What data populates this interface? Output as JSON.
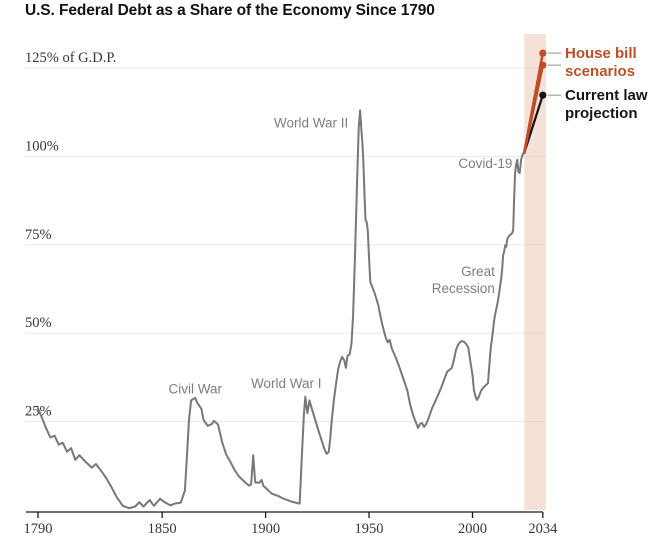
{
  "chart_data": {
    "type": "line",
    "title": "U.S. Federal Debt as a Share of the Economy Since 1790",
    "xlabel": "",
    "ylabel": "% of G.D.P.",
    "x_range": [
      1790,
      2035.5
    ],
    "y_range": [
      0,
      125
    ],
    "grid": true,
    "x_ticks": [
      {
        "value": 1790,
        "label": "1790"
      },
      {
        "value": 1850,
        "label": "1850"
      },
      {
        "value": 1900,
        "label": "1900"
      },
      {
        "value": 1950,
        "label": "1950"
      },
      {
        "value": 2000,
        "label": "2000"
      },
      {
        "value": 2034,
        "label": "2034"
      }
    ],
    "y_ticks": [
      {
        "value": 25,
        "label": "25%"
      },
      {
        "value": 50,
        "label": "50%"
      },
      {
        "value": 75,
        "label": "75%"
      },
      {
        "value": 100,
        "label": "100%"
      },
      {
        "value": 125,
        "label": "125% of G.D.P."
      }
    ],
    "projection_band": {
      "x_start": 2025,
      "x_end": 2035.5,
      "color": "rgba(232,175,152,0.38)"
    },
    "series": [
      {
        "name": "historical-debt",
        "color": "#787878",
        "width": 2,
        "end_dot": false,
        "points": [
          [
            1790,
            28.8
          ],
          [
            1792,
            26
          ],
          [
            1794,
            23
          ],
          [
            1796,
            20.5
          ],
          [
            1798,
            21
          ],
          [
            1800,
            18.5
          ],
          [
            1802,
            19
          ],
          [
            1804,
            16.5
          ],
          [
            1806,
            17.5
          ],
          [
            1808,
            14.2
          ],
          [
            1810,
            15.5
          ],
          [
            1813,
            13.6
          ],
          [
            1816,
            12
          ],
          [
            1818,
            13
          ],
          [
            1821,
            10.7
          ],
          [
            1823,
            9
          ],
          [
            1825,
            7
          ],
          [
            1828,
            3.7
          ],
          [
            1831,
            1.2
          ],
          [
            1834,
            0.5
          ],
          [
            1837,
            1
          ],
          [
            1839,
            2.2
          ],
          [
            1841,
            1
          ],
          [
            1844,
            2.8
          ],
          [
            1846,
            1.2
          ],
          [
            1849,
            3.2
          ],
          [
            1851,
            2.3
          ],
          [
            1854,
            1.3
          ],
          [
            1856,
            1.8
          ],
          [
            1859,
            2.1
          ],
          [
            1861,
            5.5
          ],
          [
            1862,
            15.5
          ],
          [
            1863,
            25.5
          ],
          [
            1864,
            31
          ],
          [
            1866,
            31.7
          ],
          [
            1867,
            30.3
          ],
          [
            1869,
            28.6
          ],
          [
            1870,
            25.5
          ],
          [
            1872,
            23.8
          ],
          [
            1874,
            24.3
          ],
          [
            1875,
            25.2
          ],
          [
            1877,
            24.2
          ],
          [
            1879,
            19.2
          ],
          [
            1881,
            15.6
          ],
          [
            1883,
            13.6
          ],
          [
            1885,
            11.3
          ],
          [
            1887,
            9.6
          ],
          [
            1890,
            7.9
          ],
          [
            1892,
            6.9
          ],
          [
            1893,
            7.2
          ],
          [
            1894,
            15.5
          ],
          [
            1895,
            7.8
          ],
          [
            1897,
            7.7
          ],
          [
            1898,
            8.5
          ],
          [
            1899,
            6.8
          ],
          [
            1901,
            5.7
          ],
          [
            1903,
            4.6
          ],
          [
            1906,
            4
          ],
          [
            1908,
            3.4
          ],
          [
            1910,
            2.9
          ],
          [
            1913,
            2.3
          ],
          [
            1915,
            2
          ],
          [
            1916.5,
            1.8
          ],
          [
            1917.5,
            15
          ],
          [
            1918.5,
            27
          ],
          [
            1919.2,
            32
          ],
          [
            1920.2,
            27.4
          ],
          [
            1921.2,
            31
          ],
          [
            1922.3,
            28.8
          ],
          [
            1924,
            25.5
          ],
          [
            1925.5,
            22.6
          ],
          [
            1927,
            19.8
          ],
          [
            1928.3,
            17.5
          ],
          [
            1929.5,
            15.9
          ],
          [
            1930.5,
            16.4
          ],
          [
            1931.2,
            19.8
          ],
          [
            1932,
            25.5
          ],
          [
            1933,
            31.1
          ],
          [
            1934,
            35.4
          ],
          [
            1935,
            39.6
          ],
          [
            1936,
            41.9
          ],
          [
            1937,
            43.3
          ],
          [
            1938,
            42.4
          ],
          [
            1938.8,
            40.2
          ],
          [
            1939.6,
            43.6
          ],
          [
            1940.6,
            44
          ],
          [
            1941.5,
            47
          ],
          [
            1942.3,
            55
          ],
          [
            1943.2,
            72
          ],
          [
            1944.2,
            92
          ],
          [
            1945,
            108
          ],
          [
            1945.7,
            113
          ],
          [
            1946.3,
            107.5
          ],
          [
            1946.8,
            103.8
          ],
          [
            1947.3,
            97.6
          ],
          [
            1947.8,
            89
          ],
          [
            1948.3,
            82
          ],
          [
            1948.9,
            81.3
          ],
          [
            1949.4,
            79
          ],
          [
            1950,
            71.5
          ],
          [
            1950.6,
            64.5
          ],
          [
            1951.6,
            63
          ],
          [
            1952.6,
            61.5
          ],
          [
            1953.5,
            59.8
          ],
          [
            1954.5,
            57.8
          ],
          [
            1955.5,
            54.9
          ],
          [
            1956.5,
            52.2
          ],
          [
            1957.5,
            49.9
          ],
          [
            1958.3,
            48.4
          ],
          [
            1959,
            47.4
          ],
          [
            1960,
            48.1
          ],
          [
            1961,
            45.7
          ],
          [
            1962.5,
            43.7
          ],
          [
            1964,
            41.5
          ],
          [
            1965.5,
            39
          ],
          [
            1967,
            36.4
          ],
          [
            1968.5,
            33.8
          ],
          [
            1970,
            29.5
          ],
          [
            1971.5,
            26.5
          ],
          [
            1973.7,
            23.2
          ],
          [
            1974.6,
            24.3
          ],
          [
            1975.6,
            24.6
          ],
          [
            1976.6,
            23.5
          ],
          [
            1977.6,
            24.3
          ],
          [
            1978.5,
            25.5
          ],
          [
            1980.5,
            28.8
          ],
          [
            1983,
            32
          ],
          [
            1985,
            34.8
          ],
          [
            1986.3,
            36.8
          ],
          [
            1987.7,
            39
          ],
          [
            1988.7,
            39.6
          ],
          [
            1990,
            40.2
          ],
          [
            1991,
            42.4
          ],
          [
            1992,
            45.2
          ],
          [
            1993,
            46.7
          ],
          [
            1994,
            47.5
          ],
          [
            1995,
            47.8
          ],
          [
            1996,
            47.5
          ],
          [
            1997,
            46.9
          ],
          [
            1998,
            45.8
          ],
          [
            1999,
            41.9
          ],
          [
            2000,
            38.2
          ],
          [
            2000.7,
            33.9
          ],
          [
            2001.7,
            31.7
          ],
          [
            2002.2,
            31.1
          ],
          [
            2003.2,
            32.2
          ],
          [
            2004.1,
            33.7
          ],
          [
            2005.1,
            34.5
          ],
          [
            2006.1,
            35.1
          ],
          [
            2007,
            35.6
          ],
          [
            2007.5,
            35.9
          ],
          [
            2008,
            39.6
          ],
          [
            2008.5,
            43.8
          ],
          [
            2009,
            46.7
          ],
          [
            2009.4,
            48.1
          ],
          [
            2009.9,
            50.9
          ],
          [
            2010.4,
            53.2
          ],
          [
            2010.9,
            55.1
          ],
          [
            2011.9,
            58
          ],
          [
            2012.4,
            59.4
          ],
          [
            2013.3,
            63.1
          ],
          [
            2013.8,
            65
          ],
          [
            2014.3,
            67.9
          ],
          [
            2014.8,
            72.1
          ],
          [
            2015.3,
            73
          ],
          [
            2015.8,
            74.9
          ],
          [
            2016.3,
            74.4
          ],
          [
            2016.8,
            76.4
          ],
          [
            2017.3,
            77.2
          ],
          [
            2018.2,
            77.8
          ],
          [
            2019.2,
            78.3
          ],
          [
            2019.7,
            79.2
          ],
          [
            2020.1,
            87.7
          ],
          [
            2020.6,
            95.3
          ],
          [
            2021.1,
            97.6
          ],
          [
            2021.6,
            99
          ],
          [
            2022.2,
            95.6
          ],
          [
            2022.8,
            95.3
          ],
          [
            2023.5,
            99
          ],
          [
            2024.2,
            100.5
          ],
          [
            2025,
            101
          ]
        ]
      },
      {
        "name": "current-law-projection",
        "color": "#151515",
        "width": 2.3,
        "end_dot": true,
        "points": [
          [
            2025,
            101
          ],
          [
            2034,
            117.3
          ]
        ]
      },
      {
        "name": "house-bill-scenario-low",
        "color": "#bc4f27",
        "width": 2.6,
        "end_dot": true,
        "points": [
          [
            2025,
            101
          ],
          [
            2034,
            125.8
          ]
        ]
      },
      {
        "name": "house-bill-scenario-high",
        "color": "#bc4f27",
        "width": 2.6,
        "end_dot": true,
        "points": [
          [
            2025,
            101
          ],
          [
            2034,
            129.2
          ]
        ]
      }
    ],
    "annotations": [
      {
        "lines": [
          "Civil War"
        ],
        "x": 1866,
        "y": 34.2,
        "anchor": "middle"
      },
      {
        "lines": [
          "World War I"
        ],
        "x": 1910,
        "y": 35.8,
        "anchor": "middle"
      },
      {
        "lines": [
          "World War II"
        ],
        "x": 1922,
        "y": 109.5,
        "anchor": "middle"
      },
      {
        "lines": [
          "Covid-19"
        ],
        "x": 2019.3,
        "y": 98,
        "anchor": "end"
      },
      {
        "lines": [
          "Great",
          "Recession"
        ],
        "x": 2010.8,
        "y": 67.5,
        "anchor": "end"
      }
    ],
    "legend": [
      {
        "lines": [
          "House bill",
          "scenarios"
        ],
        "color": "#bc4f27"
      },
      {
        "lines": [
          "Current law",
          "projection"
        ],
        "color": "#151515"
      }
    ],
    "colors": {
      "historical_line": "#787878",
      "house_bill": "#bc4f27",
      "current_law": "#151515",
      "projection_band": "#f7e3db",
      "gridline": "#e9e9e9",
      "axis": "#1a1a1a",
      "annotation_text": "#7e7e7e",
      "tick_text": "#363636"
    }
  }
}
